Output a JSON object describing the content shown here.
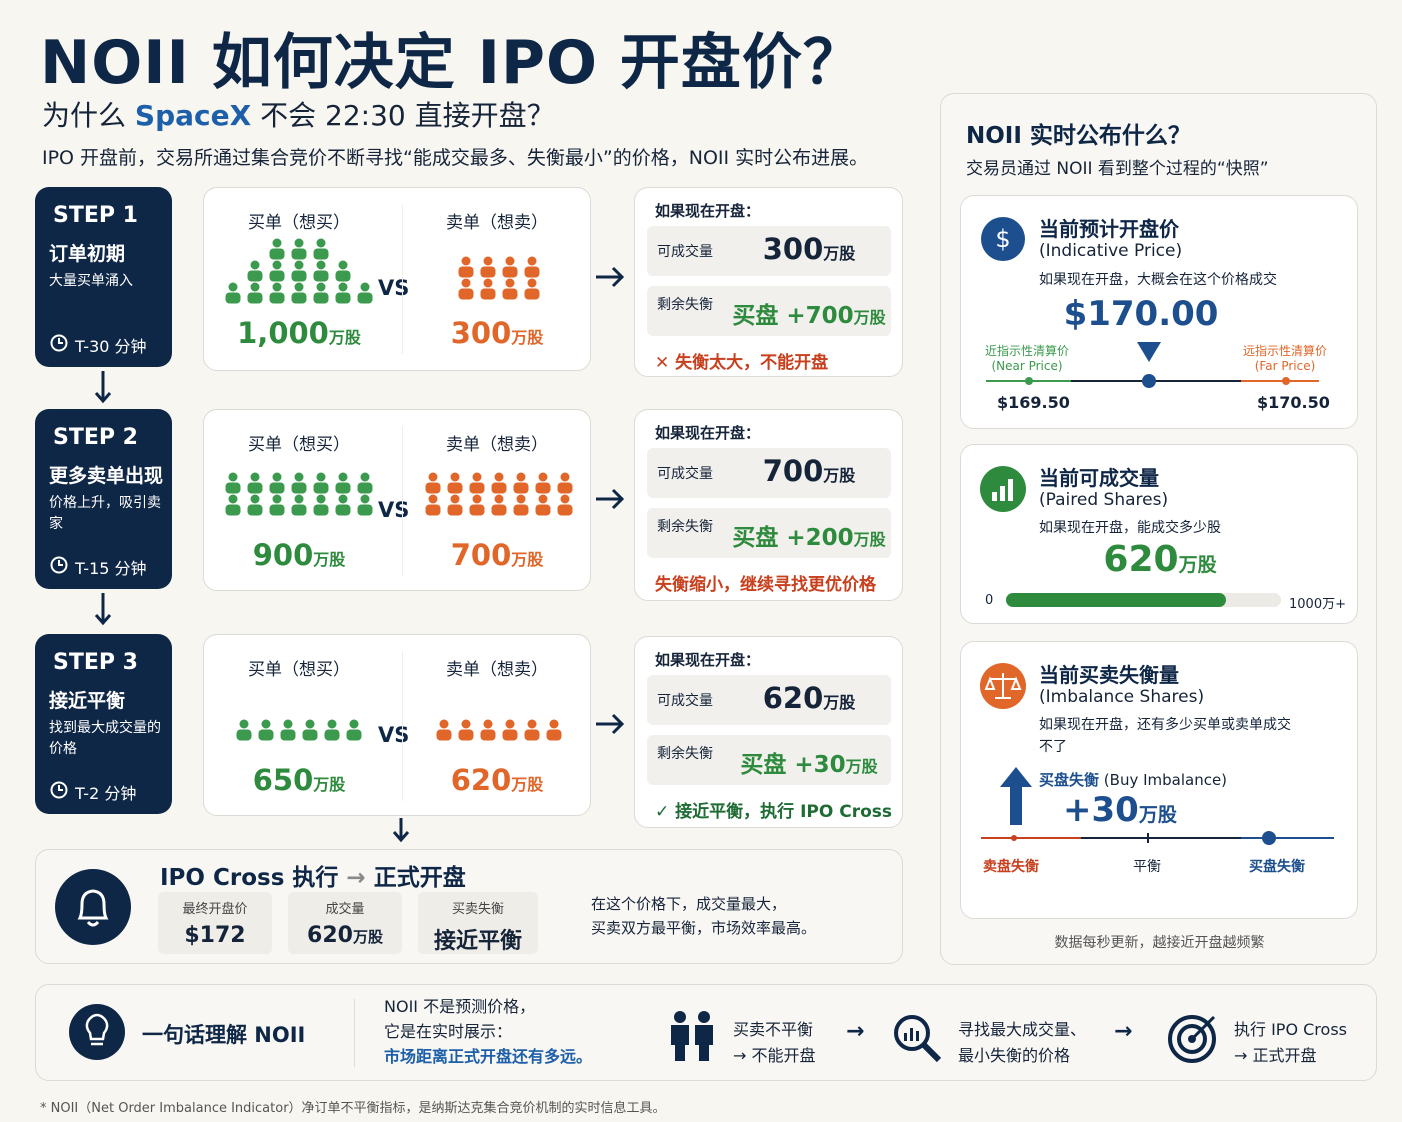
{
  "header": {
    "title": "NOII 如何决定 IPO 开盘价？",
    "subtitle_pre": "为什么",
    "subtitle_brand": "SpaceX",
    "subtitle_post": "不会 22:30 直接开盘？",
    "intro": "IPO 开盘前，交易所通过集合竞价不断寻找“能成交最多、失衡最小”的价格，NOII 实时公布进展。"
  },
  "steps": [
    {
      "step": "STEP 1",
      "title": "订单初期",
      "desc": "大量买单涌入",
      "time": "T-30 分钟",
      "buy_label": "买单（想买）",
      "vs": "VS",
      "sell_label": "卖单（想卖）",
      "buy_qty": "1,000",
      "buy_unit": "万股",
      "sell_qty": "300",
      "sell_unit": "万股",
      "result_title": "如果现在开盘：",
      "paired_label": "可成交量",
      "paired": "300",
      "paired_unit": "万股",
      "imb_label": "剩余失衡",
      "imb": "买盘 +700",
      "imb_unit": "万股",
      "verdict": "✕ 失衡太大，不能开盘",
      "verdict_color": "#c8401e"
    },
    {
      "step": "STEP 2",
      "title": "更多卖单出现",
      "desc": "价格上升，吸引卖家",
      "time": "T-15 分钟",
      "buy_label": "买单（想买）",
      "vs": "VS",
      "sell_label": "卖单（想卖）",
      "buy_qty": "900",
      "buy_unit": "万股",
      "sell_qty": "700",
      "sell_unit": "万股",
      "result_title": "如果现在开盘：",
      "paired_label": "可成交量",
      "paired": "700",
      "paired_unit": "万股",
      "imb_label": "剩余失衡",
      "imb": "买盘 +200",
      "imb_unit": "万股",
      "verdict": "失衡缩小，继续寻找更优价格",
      "verdict_color": "#c8401e"
    },
    {
      "step": "STEP 3",
      "title": "接近平衡",
      "desc": "找到最大成交量的价格",
      "time": "T-2 分钟",
      "buy_label": "买单（想买）",
      "vs": "VS",
      "sell_label": "卖单（想卖）",
      "buy_qty": "650",
      "buy_unit": "万股",
      "sell_qty": "620",
      "sell_unit": "万股",
      "result_title": "如果现在开盘：",
      "paired_label": "可成交量",
      "paired": "620",
      "paired_unit": "万股",
      "imb_label": "剩余失衡",
      "imb": "买盘 +30",
      "imb_unit": "万股",
      "verdict": "✓ 接近平衡，执行 IPO Cross",
      "verdict_color": "#1e6b34"
    }
  ],
  "cross": {
    "title_a": "IPO Cross 执行",
    "arrow": "→",
    "title_b": "正式开盘",
    "tiles": [
      {
        "label": "最终开盘价",
        "value": "$172",
        "unit": ""
      },
      {
        "label": "成交量",
        "value": "620",
        "unit": "万股"
      },
      {
        "label": "买卖失衡",
        "value": "接近平衡",
        "unit": ""
      }
    ],
    "note": [
      "在这个价格下，成交量最大，",
      "买卖双方最平衡，市场效率最高。"
    ]
  },
  "panel": {
    "title": "NOII 实时公布什么？",
    "subtitle": "交易员通过 NOII 看到整个过程的“快照”",
    "price": {
      "title": "当前预计开盘价",
      "en": "(Indicative Price)",
      "desc": "如果现在开盘，大概会在这个价格成交",
      "value": "$170.00",
      "near_label": "近指示性清算价",
      "near_en": "(Near Price)",
      "far_label": "远指示性清算价",
      "far_en": "(Far Price)",
      "near": "$169.50",
      "far": "$170.50"
    },
    "paired": {
      "title": "当前可成交量",
      "en": "(Paired Shares)",
      "desc": "如果现在开盘，能成交多少股",
      "value": "620",
      "unit": "万股",
      "min": "0",
      "max": "1000万+"
    },
    "imbalance": {
      "title": "当前买卖失衡量",
      "en": "(Imbalance Shares)",
      "desc": "如果现在开盘，还有多少买单或卖单成交不了",
      "side": "买盘失衡",
      "side_en": "(Buy Imbalance)",
      "value": "+30",
      "unit": "万股",
      "left": "卖盘失衡",
      "mid": "平衡",
      "right": "买盘失衡"
    },
    "footer": "数据每秒更新，越接近开盘越频繁"
  },
  "summary": {
    "title": "一句话理解 NOII",
    "lines": [
      "NOII 不是预测价格，",
      "它是在实时展示：",
      "市场距离正式开盘还有多远。"
    ],
    "flow": [
      [
        "买卖不平衡",
        "→ 不能开盘"
      ],
      [
        "寻找最大成交量、",
        "最小失衡的价格"
      ],
      [
        "执行 IPO Cross",
        "→ 正式开盘"
      ]
    ],
    "arrow": "→"
  },
  "footnote": "* NOII（Net Order Imbalance Indicator）净订单不平衡指标，是纳斯达克集合竞价机制的实时信息工具。"
}
